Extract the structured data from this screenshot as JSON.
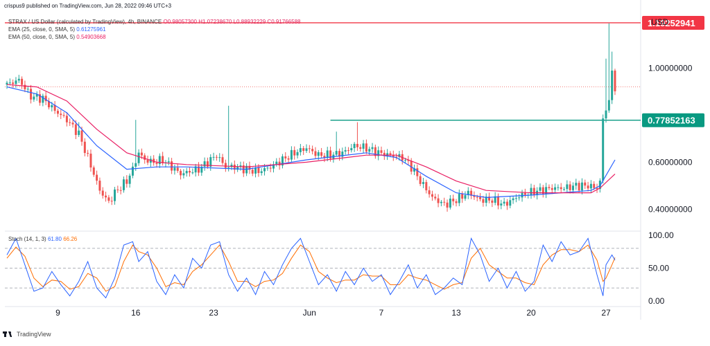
{
  "header": {
    "publisher": "crispus9 published on TradingView.com, Jun 28, 2022 09:46 UTC+3",
    "symbol_title": "STRAX / US Dollar (calculated by TradingView), 4h, BINANCE",
    "ohlc": "O0.98057300 H1.07238670 L0.88932229 C0.91766588",
    "ema25_label": "EMA (25, close, 0, SMA, 5)",
    "ema25_value": "0.61275961",
    "ema50_label": "EMA (50, close, 0, SMA, 5)",
    "ema50_value": "0.54903668",
    "currency": "USD"
  },
  "stoch_header": {
    "label": "Stoch (14, 1, 3)",
    "k_value": "61.80",
    "d_value": "66.26"
  },
  "footer": {
    "brand": "TradingView"
  },
  "colors": {
    "up": "#26a69a",
    "down": "#ef5350",
    "ema25": "#2962ff",
    "ema50": "#e91e63",
    "resistance": "#f23645",
    "support": "#089981",
    "stoch_k": "#2962ff",
    "stoch_d": "#ff6d00"
  },
  "chart_data": {
    "type": "candlestick",
    "x_ticks": [
      "9",
      "16",
      "23",
      "Jun",
      "7",
      "13",
      "20",
      "27"
    ],
    "price_axis_ticks": [
      "1.00000000",
      "0.60000000",
      "0.40000000"
    ],
    "ylim": [
      0.31,
      1.26
    ],
    "horizontal_levels": [
      {
        "label": "1.19252941",
        "value": 1.19252941,
        "color": "#f23645"
      },
      {
        "label": "0.77852163",
        "value": 0.77852163,
        "color": "#089981"
      }
    ],
    "price_path": [
      [
        0,
        0.93
      ],
      [
        4,
        0.95
      ],
      [
        8,
        0.88
      ],
      [
        12,
        0.87
      ],
      [
        16,
        0.82
      ],
      [
        20,
        0.78
      ],
      [
        24,
        0.72
      ],
      [
        27,
        0.62
      ],
      [
        31,
        0.48
      ],
      [
        34,
        0.43
      ],
      [
        36,
        0.47
      ],
      [
        40,
        0.52
      ],
      [
        42,
        0.57
      ],
      [
        44,
        0.64
      ],
      [
        46,
        0.61
      ],
      [
        49,
        0.6
      ],
      [
        52,
        0.61
      ],
      [
        55,
        0.58
      ],
      [
        58,
        0.55
      ],
      [
        61,
        0.56
      ],
      [
        64,
        0.57
      ],
      [
        67,
        0.6
      ],
      [
        70,
        0.63
      ],
      [
        73,
        0.58
      ],
      [
        76,
        0.58
      ],
      [
        80,
        0.57
      ],
      [
        84,
        0.56
      ],
      [
        88,
        0.58
      ],
      [
        92,
        0.61
      ],
      [
        96,
        0.64
      ],
      [
        100,
        0.66
      ],
      [
        104,
        0.63
      ],
      [
        108,
        0.63
      ],
      [
        112,
        0.64
      ],
      [
        116,
        0.67
      ],
      [
        120,
        0.66
      ],
      [
        124,
        0.64
      ],
      [
        128,
        0.63
      ],
      [
        132,
        0.62
      ],
      [
        135,
        0.58
      ],
      [
        138,
        0.52
      ],
      [
        142,
        0.45
      ],
      [
        146,
        0.42
      ],
      [
        150,
        0.44
      ],
      [
        154,
        0.47
      ],
      [
        158,
        0.44
      ],
      [
        162,
        0.44
      ],
      [
        166,
        0.42
      ],
      [
        170,
        0.45
      ],
      [
        174,
        0.47
      ],
      [
        178,
        0.48
      ],
      [
        182,
        0.49
      ],
      [
        186,
        0.49
      ],
      [
        190,
        0.5
      ],
      [
        194,
        0.5
      ],
      [
        197,
        0.49
      ],
      [
        198,
        0.52
      ],
      [
        199,
        0.78
      ],
      [
        200,
        0.83
      ],
      [
        201,
        0.86
      ],
      [
        202,
        0.98
      ],
      [
        203,
        0.92
      ]
    ],
    "upper_wicks": {
      "24": 0.77,
      "43": 0.78,
      "74": 0.84,
      "110": 0.73,
      "117": 0.77,
      "200": 1.04,
      "201": 1.19,
      "202": 1.07
    },
    "ema25_path": [
      [
        0,
        0.92
      ],
      [
        10,
        0.89
      ],
      [
        20,
        0.81
      ],
      [
        30,
        0.67
      ],
      [
        40,
        0.57
      ],
      [
        50,
        0.58
      ],
      [
        60,
        0.58
      ],
      [
        80,
        0.57
      ],
      [
        100,
        0.61
      ],
      [
        120,
        0.64
      ],
      [
        130,
        0.62
      ],
      [
        140,
        0.54
      ],
      [
        150,
        0.47
      ],
      [
        160,
        0.45
      ],
      [
        175,
        0.46
      ],
      [
        185,
        0.47
      ],
      [
        195,
        0.48
      ],
      [
        198,
        0.5
      ],
      [
        203,
        0.61
      ]
    ],
    "ema50_path": [
      [
        0,
        0.93
      ],
      [
        10,
        0.92
      ],
      [
        20,
        0.86
      ],
      [
        30,
        0.74
      ],
      [
        40,
        0.64
      ],
      [
        50,
        0.6
      ],
      [
        60,
        0.59
      ],
      [
        80,
        0.58
      ],
      [
        100,
        0.6
      ],
      [
        120,
        0.63
      ],
      [
        130,
        0.63
      ],
      [
        140,
        0.58
      ],
      [
        150,
        0.52
      ],
      [
        160,
        0.48
      ],
      [
        175,
        0.47
      ],
      [
        185,
        0.47
      ],
      [
        195,
        0.47
      ],
      [
        198,
        0.49
      ],
      [
        203,
        0.55
      ]
    ],
    "stochastic": {
      "ylim": [
        -5,
        105
      ],
      "axis_ticks": [
        "100.00",
        "50.00",
        "0.00"
      ],
      "levels": [
        80,
        50,
        20
      ],
      "k": [
        [
          0,
          70
        ],
        [
          3,
          95
        ],
        [
          6,
          55
        ],
        [
          9,
          15
        ],
        [
          12,
          20
        ],
        [
          15,
          45
        ],
        [
          18,
          25
        ],
        [
          21,
          8
        ],
        [
          24,
          30
        ],
        [
          27,
          60
        ],
        [
          30,
          20
        ],
        [
          33,
          5
        ],
        [
          36,
          35
        ],
        [
          39,
          85
        ],
        [
          42,
          90
        ],
        [
          44,
          60
        ],
        [
          47,
          75
        ],
        [
          50,
          30
        ],
        [
          53,
          10
        ],
        [
          56,
          40
        ],
        [
          59,
          20
        ],
        [
          62,
          65
        ],
        [
          65,
          50
        ],
        [
          68,
          85
        ],
        [
          71,
          90
        ],
        [
          74,
          40
        ],
        [
          77,
          15
        ],
        [
          80,
          35
        ],
        [
          83,
          10
        ],
        [
          86,
          45
        ],
        [
          89,
          25
        ],
        [
          92,
          55
        ],
        [
          95,
          80
        ],
        [
          98,
          95
        ],
        [
          101,
          60
        ],
        [
          104,
          25
        ],
        [
          107,
          40
        ],
        [
          110,
          15
        ],
        [
          113,
          45
        ],
        [
          116,
          25
        ],
        [
          119,
          50
        ],
        [
          122,
          30
        ],
        [
          125,
          40
        ],
        [
          128,
          10
        ],
        [
          131,
          30
        ],
        [
          134,
          55
        ],
        [
          137,
          20
        ],
        [
          140,
          40
        ],
        [
          143,
          10
        ],
        [
          146,
          20
        ],
        [
          149,
          35
        ],
        [
          152,
          25
        ],
        [
          155,
          95
        ],
        [
          158,
          70
        ],
        [
          161,
          30
        ],
        [
          164,
          50
        ],
        [
          167,
          20
        ],
        [
          170,
          45
        ],
        [
          173,
          15
        ],
        [
          176,
          30
        ],
        [
          179,
          85
        ],
        [
          182,
          60
        ],
        [
          185,
          90
        ],
        [
          188,
          70
        ],
        [
          191,
          75
        ],
        [
          194,
          95
        ],
        [
          197,
          40
        ],
        [
          199,
          8
        ],
        [
          200,
          55
        ],
        [
          202,
          70
        ],
        [
          203,
          62
        ]
      ],
      "d": [
        [
          0,
          65
        ],
        [
          3,
          82
        ],
        [
          6,
          68
        ],
        [
          9,
          35
        ],
        [
          12,
          22
        ],
        [
          15,
          32
        ],
        [
          18,
          30
        ],
        [
          21,
          18
        ],
        [
          24,
          22
        ],
        [
          27,
          42
        ],
        [
          30,
          35
        ],
        [
          33,
          15
        ],
        [
          36,
          22
        ],
        [
          39,
          60
        ],
        [
          42,
          85
        ],
        [
          44,
          75
        ],
        [
          47,
          70
        ],
        [
          50,
          50
        ],
        [
          53,
          22
        ],
        [
          56,
          28
        ],
        [
          59,
          25
        ],
        [
          62,
          45
        ],
        [
          65,
          55
        ],
        [
          68,
          70
        ],
        [
          71,
          85
        ],
        [
          74,
          60
        ],
        [
          77,
          30
        ],
        [
          80,
          30
        ],
        [
          83,
          22
        ],
        [
          86,
          30
        ],
        [
          89,
          32
        ],
        [
          92,
          42
        ],
        [
          95,
          65
        ],
        [
          98,
          85
        ],
        [
          101,
          75
        ],
        [
          104,
          45
        ],
        [
          107,
          35
        ],
        [
          110,
          28
        ],
        [
          113,
          32
        ],
        [
          116,
          32
        ],
        [
          119,
          40
        ],
        [
          122,
          38
        ],
        [
          125,
          38
        ],
        [
          128,
          25
        ],
        [
          131,
          25
        ],
        [
          134,
          40
        ],
        [
          137,
          35
        ],
        [
          140,
          32
        ],
        [
          143,
          25
        ],
        [
          146,
          18
        ],
        [
          149,
          25
        ],
        [
          152,
          28
        ],
        [
          155,
          65
        ],
        [
          158,
          80
        ],
        [
          161,
          55
        ],
        [
          164,
          45
        ],
        [
          167,
          35
        ],
        [
          170,
          35
        ],
        [
          173,
          28
        ],
        [
          176,
          25
        ],
        [
          179,
          55
        ],
        [
          182,
          70
        ],
        [
          185,
          78
        ],
        [
          188,
          78
        ],
        [
          191,
          75
        ],
        [
          194,
          85
        ],
        [
          197,
          62
        ],
        [
          199,
          30
        ],
        [
          200,
          35
        ],
        [
          202,
          55
        ],
        [
          203,
          66
        ]
      ]
    }
  }
}
